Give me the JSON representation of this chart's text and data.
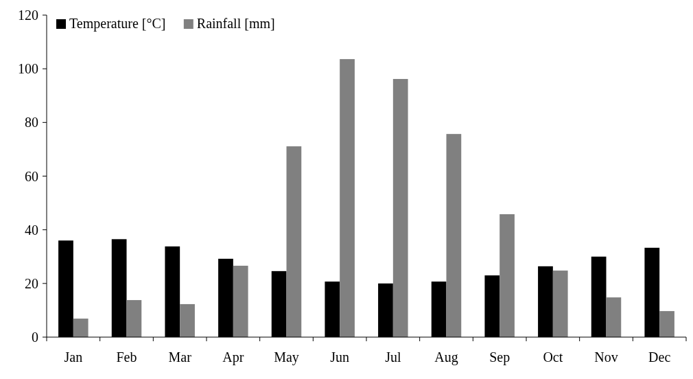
{
  "chart_data": {
    "type": "bar",
    "categories": [
      "Jan",
      "Feb",
      "Mar",
      "Apr",
      "May",
      "Jun",
      "Jul",
      "Aug",
      "Sep",
      "Oct",
      "Nov",
      "Dec"
    ],
    "series": [
      {
        "name": "Temperature [°C]",
        "color": "#000000",
        "values": [
          36,
          36.5,
          33.8,
          29.2,
          24.6,
          20.7,
          20,
          20.7,
          23,
          26.4,
          30,
          33.3
        ]
      },
      {
        "name": "Rainfall [mm]",
        "color": "#808080",
        "values": [
          6.9,
          13.8,
          12.3,
          26.6,
          71.1,
          103.6,
          96.2,
          75.7,
          45.8,
          24.8,
          14.8,
          9.7
        ]
      }
    ],
    "ylim": [
      0,
      120
    ],
    "yticks": [
      0,
      20,
      40,
      60,
      80,
      100,
      120
    ],
    "grid": false,
    "legend": "top left"
  }
}
